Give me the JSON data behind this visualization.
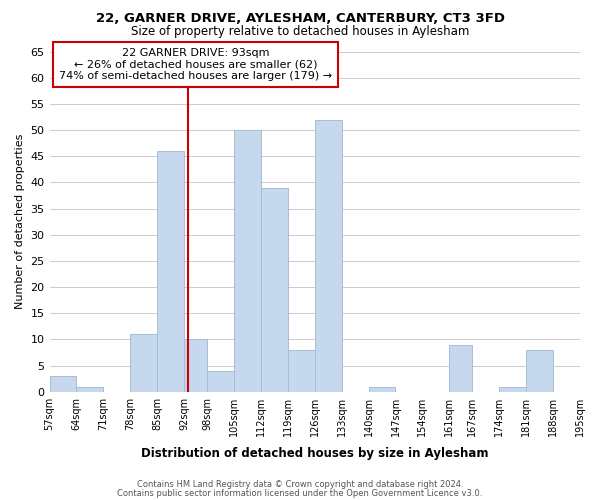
{
  "title1": "22, GARNER DRIVE, AYLESHAM, CANTERBURY, CT3 3FD",
  "title2": "Size of property relative to detached houses in Aylesham",
  "xlabel": "Distribution of detached houses by size in Aylesham",
  "ylabel": "Number of detached properties",
  "bar_edges": [
    57,
    64,
    71,
    78,
    85,
    92,
    98,
    105,
    112,
    119,
    126,
    133,
    140,
    147,
    154,
    161,
    167,
    174,
    181,
    188,
    195
  ],
  "bar_heights": [
    3,
    1,
    0,
    11,
    46,
    10,
    4,
    50,
    39,
    8,
    52,
    0,
    1,
    0,
    0,
    9,
    0,
    1,
    8,
    0
  ],
  "bar_color": "#c5d8ed",
  "bar_edge_color": "#aabdd8",
  "property_line_x": 93,
  "property_line_color": "#cc0000",
  "annotation_line1": "22 GARNER DRIVE: 93sqm",
  "annotation_line2": "← 26% of detached houses are smaller (62)",
  "annotation_line3": "74% of semi-detached houses are larger (179) →",
  "annotation_box_color": "#ffffff",
  "annotation_box_edge_color": "#cc0000",
  "ylim": [
    0,
    65
  ],
  "yticks": [
    0,
    5,
    10,
    15,
    20,
    25,
    30,
    35,
    40,
    45,
    50,
    55,
    60,
    65
  ],
  "tick_labels": [
    "57sqm",
    "64sqm",
    "71sqm",
    "78sqm",
    "85sqm",
    "92sqm",
    "98sqm",
    "105sqm",
    "112sqm",
    "119sqm",
    "126sqm",
    "133sqm",
    "140sqm",
    "147sqm",
    "154sqm",
    "161sqm",
    "167sqm",
    "174sqm",
    "181sqm",
    "188sqm",
    "195sqm"
  ],
  "footer1": "Contains HM Land Registry data © Crown copyright and database right 2024.",
  "footer2": "Contains public sector information licensed under the Open Government Licence v3.0.",
  "background_color": "#ffffff",
  "grid_color": "#cccccc",
  "title1_fontsize": 9.5,
  "title2_fontsize": 8.5,
  "ylabel_fontsize": 8,
  "xlabel_fontsize": 8.5,
  "ytick_fontsize": 8,
  "xtick_fontsize": 7,
  "footer_fontsize": 6,
  "annotation_fontsize": 8
}
